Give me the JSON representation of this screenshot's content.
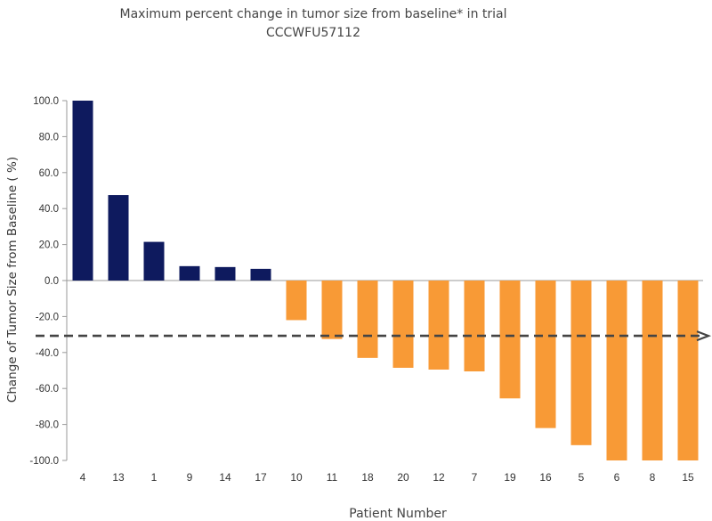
{
  "chart_data": {
    "type": "bar",
    "title_line1": "Maximum percent change in tumor size from baseline* in trial",
    "title_line2": "CCCWFU57112",
    "xlabel": "Patient Number",
    "ylabel": "Change of Tumor Size from Baseline ( %)",
    "ylim": [
      -100,
      100
    ],
    "yticks": [
      "100.0",
      "80.0",
      "60.0",
      "40.0",
      "20.0",
      "0.0",
      "-20.0",
      "-40.0",
      "-60.0",
      "-80.0",
      "-100.0"
    ],
    "categories": [
      "4",
      "13",
      "1",
      "9",
      "14",
      "17",
      "10",
      "11",
      "18",
      "20",
      "12",
      "7",
      "19",
      "16",
      "5",
      "6",
      "8",
      "15"
    ],
    "values": [
      100,
      47.5,
      21.5,
      8,
      7.5,
      6.5,
      -22,
      -32.5,
      -43,
      -48.5,
      -49.5,
      -50.5,
      -65.5,
      -82,
      -91.5,
      -100,
      -100,
      -100
    ],
    "reference_line": -30,
    "colors": {
      "positive": "#0e1a5e",
      "negative": "#f89a36",
      "reference": "#444444",
      "axis": "#999999"
    }
  }
}
